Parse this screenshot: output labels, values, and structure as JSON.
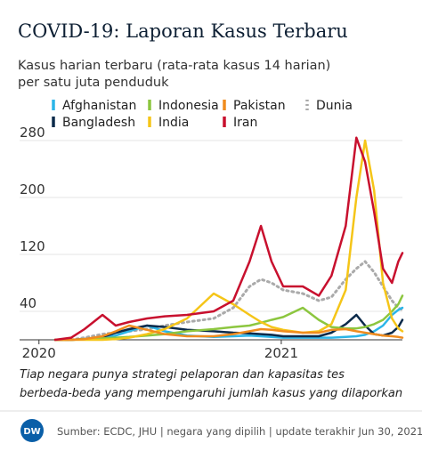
{
  "chart_data": {
    "type": "line",
    "title": "COVID-19: Laporan Kasus Terbaru",
    "subtitle": [
      "Kasus harian terbaru (rata-rata kasus 14 harian)",
      "per satu juta penduduk"
    ],
    "note": [
      "Tiap negara punya strategi pelaporan dan kapasitas tes",
      "berbeda-beda yang mempengaruhi jumlah kasus yang dilaporkan"
    ],
    "source": "Sumber: ECDC, JHU | negara yang dipilih | update terakhir Jun 30, 2021",
    "logo": "DW",
    "x": [
      2020.067,
      2020.133,
      2020.188,
      2020.262,
      2020.317,
      2020.372,
      2020.446,
      2020.519,
      2020.611,
      2020.721,
      2020.802,
      2020.869,
      2020.916,
      2020.96,
      2021.008,
      2021.089,
      2021.155,
      2021.207,
      2021.266,
      2021.31,
      2021.346,
      2021.383,
      2021.42,
      2021.457,
      2021.483,
      2021.5
    ],
    "series": [
      {
        "name": "Afghanistan",
        "color": "#2bb5e8",
        "values": [
          0,
          0,
          1,
          3,
          6,
          12,
          20,
          12,
          6,
          4,
          5,
          6,
          5,
          4,
          3,
          3,
          3,
          3,
          4,
          5,
          7,
          12,
          20,
          35,
          42,
          45
        ]
      },
      {
        "name": "Bangladesh",
        "color": "#0b2a4a",
        "values": [
          0,
          0,
          1,
          4,
          10,
          15,
          20,
          18,
          14,
          12,
          10,
          9,
          8,
          7,
          5,
          5,
          5,
          10,
          22,
          35,
          20,
          8,
          6,
          10,
          18,
          28
        ]
      },
      {
        "name": "Indonesia",
        "color": "#8cc63f",
        "values": [
          0,
          0,
          1,
          2,
          3,
          4,
          6,
          8,
          12,
          15,
          18,
          20,
          24,
          28,
          32,
          45,
          28,
          18,
          16,
          16,
          18,
          22,
          28,
          40,
          50,
          62
        ]
      },
      {
        "name": "India",
        "color": "#f5c518",
        "values": [
          0,
          0,
          0,
          0,
          1,
          3,
          8,
          15,
          30,
          65,
          50,
          35,
          25,
          18,
          14,
          10,
          12,
          22,
          70,
          200,
          280,
          210,
          80,
          30,
          16,
          12
        ]
      },
      {
        "name": "Pakistan",
        "color": "#f08c1e",
        "values": [
          0,
          0,
          1,
          5,
          12,
          20,
          14,
          8,
          5,
          5,
          8,
          12,
          15,
          14,
          12,
          10,
          10,
          14,
          15,
          12,
          10,
          8,
          6,
          5,
          4,
          3
        ]
      },
      {
        "name": "Iran",
        "color": "#c8102e",
        "values": [
          0,
          3,
          15,
          35,
          20,
          25,
          30,
          33,
          35,
          40,
          55,
          110,
          160,
          110,
          75,
          75,
          62,
          90,
          160,
          284,
          250,
          180,
          100,
          80,
          110,
          122
        ]
      },
      {
        "name": "Dunia",
        "color": "#aaaaaa",
        "style": "dotted",
        "values": [
          0,
          0,
          3,
          8,
          10,
          12,
          15,
          20,
          25,
          30,
          45,
          75,
          85,
          80,
          70,
          65,
          55,
          60,
          85,
          100,
          110,
          95,
          75,
          55,
          45,
          42
        ]
      }
    ],
    "xlim": [
      2019.92,
      2021.5
    ],
    "xticks": [
      2020,
      2021
    ],
    "ylim": [
      0,
      290
    ],
    "yticks": [
      40,
      120,
      200,
      280
    ],
    "grid": true
  }
}
